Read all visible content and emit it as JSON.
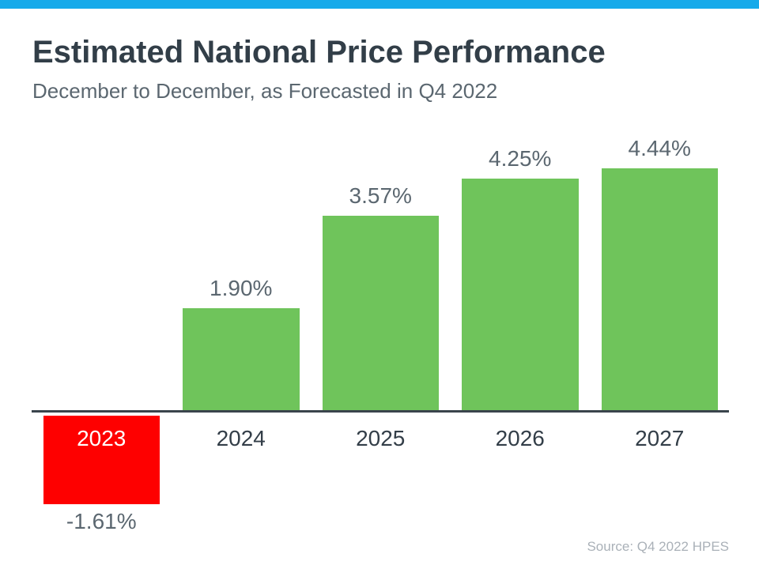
{
  "chart_data": {
    "type": "bar",
    "title": "Estimated National Price Performance",
    "subtitle": "December to December, as Forecasted in Q4 2022",
    "categories": [
      "2023",
      "2024",
      "2025",
      "2026",
      "2027"
    ],
    "values": [
      -1.61,
      1.9,
      3.57,
      4.25,
      4.44
    ],
    "value_labels": [
      "-1.61%",
      "1.90%",
      "3.57%",
      "4.25%",
      "4.44%"
    ],
    "xlabel": "",
    "ylabel": "",
    "ylim": [
      -2,
      5
    ],
    "grid": false,
    "legend": false,
    "data_labels": true,
    "bar_color_positive": "#6FC45B",
    "bar_color_negative": "#FE0000",
    "value_label_color": "#5B6770",
    "year_label_color": "#333E48",
    "negative_year_label_color": "#FFFFFF",
    "axis_color": "#3A444C"
  },
  "accent": {
    "top_bar_color": "#16AAEA"
  },
  "footer": {
    "source": "Source: Q4 2022 HPES"
  }
}
